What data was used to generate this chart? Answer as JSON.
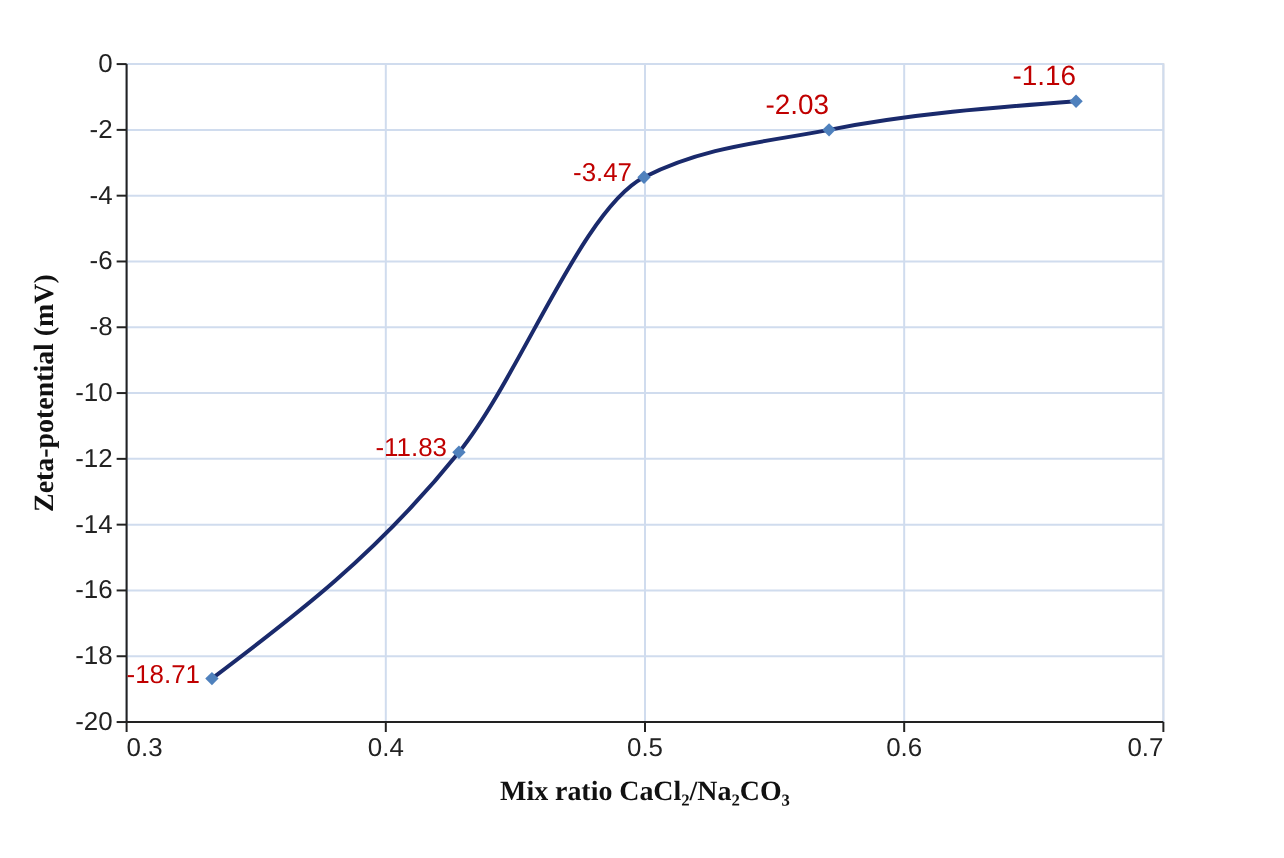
{
  "chart_data": {
    "type": "line",
    "xlabel": "Mix ratio CaCl₂/Na₂CO₃",
    "ylabel": "Zeta-potential (mV)",
    "x": [
      0.3333,
      0.4286,
      0.5,
      0.5714,
      0.6667
    ],
    "series": [
      {
        "color": "#1a2a6c",
        "values": [
          -18.71,
          -11.83,
          -3.47,
          -2.03,
          -1.16
        ]
      }
    ],
    "xlim": [
      0.3,
      0.7
    ],
    "xticks": [
      0.3,
      0.4,
      0.5,
      0.6,
      0.7
    ],
    "ylim": [
      -20,
      0
    ],
    "yticks": [
      -20,
      -18,
      -16,
      -14,
      -12,
      -10,
      -8,
      -6,
      -4,
      -2,
      0
    ],
    "grid": true,
    "marker": "diamond",
    "line_style": "solid",
    "data_labels": true
  }
}
